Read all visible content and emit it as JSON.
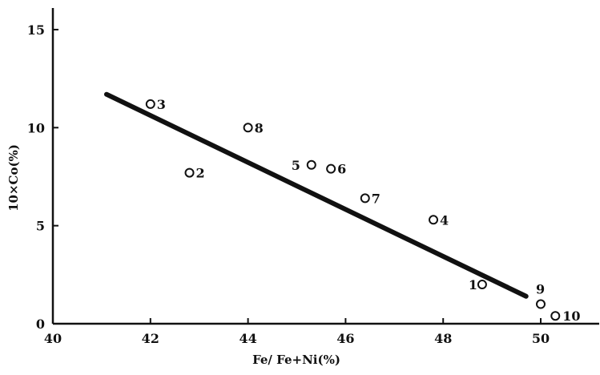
{
  "chart_data": {
    "type": "scatter",
    "xlabel": "Fe/ Fe+Ni(%)",
    "ylabel": "10×Co(%)",
    "xlim": [
      40,
      51.2
    ],
    "ylim": [
      0,
      16
    ],
    "xticks": [
      40,
      42,
      44,
      46,
      48,
      50
    ],
    "yticks": [
      0,
      5,
      10,
      15
    ],
    "x_tick_labels": [
      "40",
      "42",
      "44",
      "46",
      "48",
      "50"
    ],
    "y_tick_labels": [
      "0",
      "5",
      "10",
      "15"
    ],
    "grid": false,
    "legend": "none",
    "points": [
      {
        "label": "1",
        "x": 48.8,
        "y": 2.0
      },
      {
        "label": "2",
        "x": 42.8,
        "y": 7.7
      },
      {
        "label": "3",
        "x": 42.0,
        "y": 11.2
      },
      {
        "label": "4",
        "x": 47.8,
        "y": 5.3
      },
      {
        "label": "5",
        "x": 45.3,
        "y": 8.1
      },
      {
        "label": "6",
        "x": 45.7,
        "y": 7.9
      },
      {
        "label": "7",
        "x": 46.4,
        "y": 6.4
      },
      {
        "label": "8",
        "x": 44.0,
        "y": 10.0
      },
      {
        "label": "9",
        "x": 50.0,
        "y": 1.0
      },
      {
        "label": "10",
        "x": 50.3,
        "y": 0.4
      }
    ],
    "fit_line": {
      "x": [
        41.1,
        49.7
      ],
      "y": [
        11.7,
        1.4
      ]
    }
  }
}
